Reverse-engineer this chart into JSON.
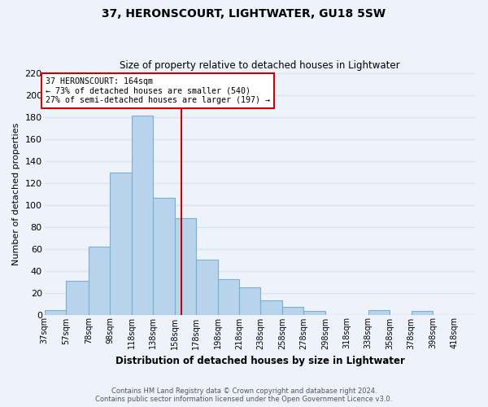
{
  "title": "37, HERONSCOURT, LIGHTWATER, GU18 5SW",
  "subtitle": "Size of property relative to detached houses in Lightwater",
  "xlabel": "Distribution of detached houses by size in Lightwater",
  "ylabel": "Number of detached properties",
  "bar_color": "#b8d4ed",
  "bar_edge_color": "#7aafd4",
  "bins": [
    37,
    57,
    78,
    98,
    118,
    138,
    158,
    178,
    198,
    218,
    238,
    258,
    278,
    298,
    318,
    338,
    358,
    378,
    398,
    418,
    438
  ],
  "counts": [
    4,
    31,
    62,
    129,
    181,
    106,
    88,
    50,
    32,
    25,
    13,
    7,
    3,
    0,
    0,
    4,
    0,
    3,
    0,
    0
  ],
  "tick_labels": [
    "37sqm",
    "57sqm",
    "78sqm",
    "98sqm",
    "118sqm",
    "138sqm",
    "158sqm",
    "178sqm",
    "198sqm",
    "218sqm",
    "238sqm",
    "258sqm",
    "278sqm",
    "298sqm",
    "318sqm",
    "338sqm",
    "358sqm",
    "378sqm",
    "398sqm",
    "418sqm"
  ],
  "vline_x": 164,
  "vline_color": "#cc0000",
  "annotation_line1": "37 HERONSCOURT: 164sqm",
  "annotation_line2": "← 73% of detached houses are smaller (540)",
  "annotation_line3": "27% of semi-detached houses are larger (197) →",
  "annotation_box_color": "#ffffff",
  "annotation_box_edge": "#cc0000",
  "ylim": [
    0,
    220
  ],
  "yticks": [
    0,
    20,
    40,
    60,
    80,
    100,
    120,
    140,
    160,
    180,
    200,
    220
  ],
  "footnote1": "Contains HM Land Registry data © Crown copyright and database right 2024.",
  "footnote2": "Contains public sector information licensed under the Open Government Licence v3.0.",
  "background_color": "#eef2fb",
  "grid_color": "#d8e4f0"
}
